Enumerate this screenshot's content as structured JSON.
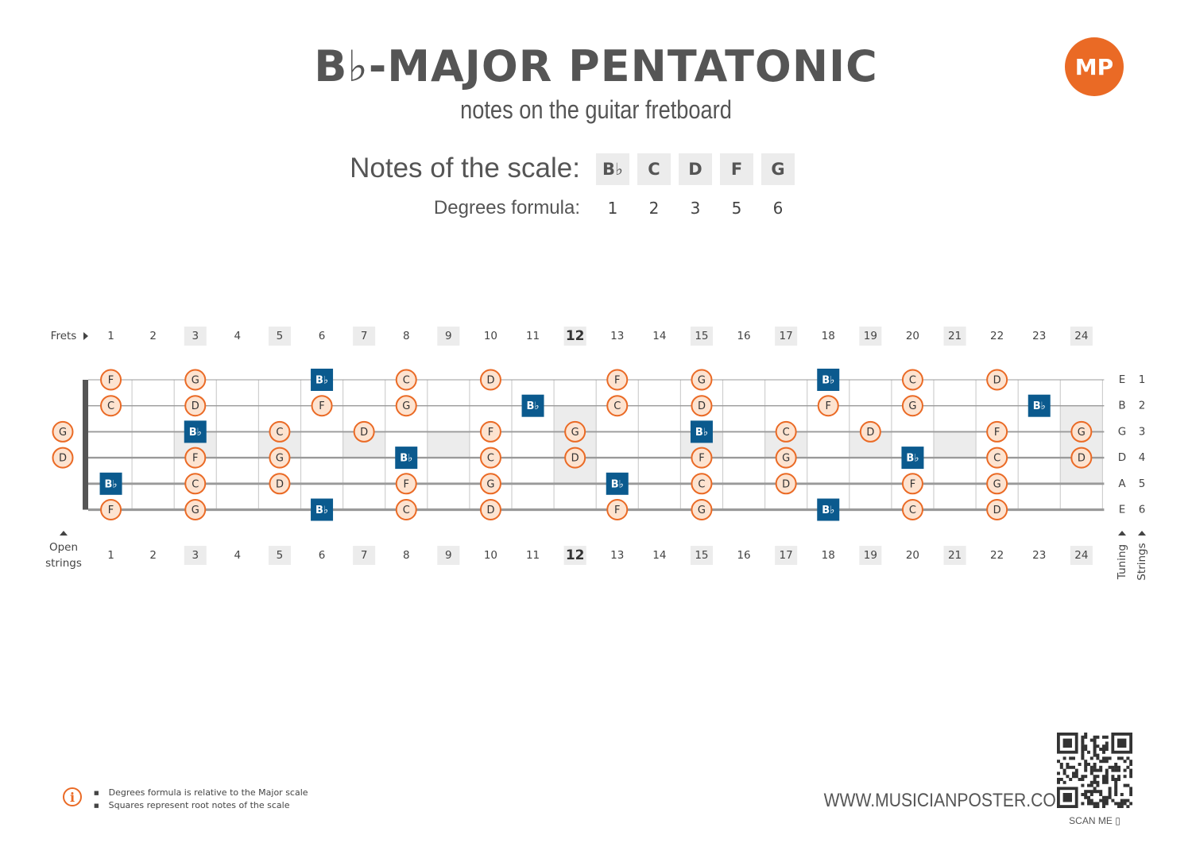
{
  "header": {
    "title": "B♭-MAJOR PENTATONIC",
    "subtitle": "notes on the guitar fretboard",
    "logo_text": "MP",
    "accent_color": "#ea6a25",
    "root_color": "#0b5a8e"
  },
  "scale": {
    "notes_label": "Notes of the scale:",
    "degrees_label": "Degrees formula:",
    "notes": [
      "B♭",
      "C",
      "D",
      "F",
      "G"
    ],
    "degrees": [
      "1",
      "2",
      "3",
      "5",
      "6"
    ]
  },
  "fretboard": {
    "frets_label": "Frets",
    "open_label_1": "Open",
    "open_label_2": "strings",
    "tuning_label": "Tuning",
    "strings_label": "Strings",
    "fret_numbers": [
      "1",
      "2",
      "3",
      "4",
      "5",
      "6",
      "7",
      "8",
      "9",
      "10",
      "11",
      "12",
      "13",
      "14",
      "15",
      "16",
      "17",
      "18",
      "19",
      "20",
      "21",
      "22",
      "23",
      "24"
    ],
    "inlay_frets": [
      3,
      5,
      7,
      9,
      12,
      15,
      17,
      19,
      21,
      24
    ],
    "bold_fret": 12,
    "tuning": [
      "E",
      "B",
      "G",
      "D",
      "A",
      "E"
    ],
    "string_numbers": [
      "1",
      "2",
      "3",
      "4",
      "5",
      "6"
    ],
    "notes": [
      {
        "s": 1,
        "f": 1,
        "n": "F"
      },
      {
        "s": 1,
        "f": 3,
        "n": "G"
      },
      {
        "s": 1,
        "f": 6,
        "n": "B♭",
        "root": true
      },
      {
        "s": 1,
        "f": 8,
        "n": "C"
      },
      {
        "s": 1,
        "f": 10,
        "n": "D"
      },
      {
        "s": 1,
        "f": 13,
        "n": "F"
      },
      {
        "s": 1,
        "f": 15,
        "n": "G"
      },
      {
        "s": 1,
        "f": 18,
        "n": "B♭",
        "root": true
      },
      {
        "s": 1,
        "f": 20,
        "n": "C"
      },
      {
        "s": 1,
        "f": 22,
        "n": "D"
      },
      {
        "s": 2,
        "f": 1,
        "n": "C"
      },
      {
        "s": 2,
        "f": 3,
        "n": "D"
      },
      {
        "s": 2,
        "f": 6,
        "n": "F"
      },
      {
        "s": 2,
        "f": 8,
        "n": "G"
      },
      {
        "s": 2,
        "f": 11,
        "n": "B♭",
        "root": true
      },
      {
        "s": 2,
        "f": 13,
        "n": "C"
      },
      {
        "s": 2,
        "f": 15,
        "n": "D"
      },
      {
        "s": 2,
        "f": 18,
        "n": "F"
      },
      {
        "s": 2,
        "f": 20,
        "n": "G"
      },
      {
        "s": 2,
        "f": 23,
        "n": "B♭",
        "root": true
      },
      {
        "s": 3,
        "f": 0,
        "n": "G"
      },
      {
        "s": 3,
        "f": 3,
        "n": "B♭",
        "root": true
      },
      {
        "s": 3,
        "f": 5,
        "n": "C"
      },
      {
        "s": 3,
        "f": 7,
        "n": "D"
      },
      {
        "s": 3,
        "f": 10,
        "n": "F"
      },
      {
        "s": 3,
        "f": 12,
        "n": "G"
      },
      {
        "s": 3,
        "f": 15,
        "n": "B♭",
        "root": true
      },
      {
        "s": 3,
        "f": 17,
        "n": "C"
      },
      {
        "s": 3,
        "f": 19,
        "n": "D"
      },
      {
        "s": 3,
        "f": 22,
        "n": "F"
      },
      {
        "s": 3,
        "f": 24,
        "n": "G"
      },
      {
        "s": 4,
        "f": 0,
        "n": "D"
      },
      {
        "s": 4,
        "f": 3,
        "n": "F"
      },
      {
        "s": 4,
        "f": 5,
        "n": "G"
      },
      {
        "s": 4,
        "f": 8,
        "n": "B♭",
        "root": true
      },
      {
        "s": 4,
        "f": 10,
        "n": "C"
      },
      {
        "s": 4,
        "f": 12,
        "n": "D"
      },
      {
        "s": 4,
        "f": 15,
        "n": "F"
      },
      {
        "s": 4,
        "f": 17,
        "n": "G"
      },
      {
        "s": 4,
        "f": 20,
        "n": "B♭",
        "root": true
      },
      {
        "s": 4,
        "f": 22,
        "n": "C"
      },
      {
        "s": 4,
        "f": 24,
        "n": "D"
      },
      {
        "s": 5,
        "f": 1,
        "n": "B♭",
        "root": true
      },
      {
        "s": 5,
        "f": 3,
        "n": "C"
      },
      {
        "s": 5,
        "f": 5,
        "n": "D"
      },
      {
        "s": 5,
        "f": 8,
        "n": "F"
      },
      {
        "s": 5,
        "f": 10,
        "n": "G"
      },
      {
        "s": 5,
        "f": 13,
        "n": "B♭",
        "root": true
      },
      {
        "s": 5,
        "f": 15,
        "n": "C"
      },
      {
        "s": 5,
        "f": 17,
        "n": "D"
      },
      {
        "s": 5,
        "f": 20,
        "n": "F"
      },
      {
        "s": 5,
        "f": 22,
        "n": "G"
      },
      {
        "s": 6,
        "f": 1,
        "n": "F"
      },
      {
        "s": 6,
        "f": 3,
        "n": "G"
      },
      {
        "s": 6,
        "f": 6,
        "n": "B♭",
        "root": true
      },
      {
        "s": 6,
        "f": 8,
        "n": "C"
      },
      {
        "s": 6,
        "f": 10,
        "n": "D"
      },
      {
        "s": 6,
        "f": 13,
        "n": "F"
      },
      {
        "s": 6,
        "f": 15,
        "n": "G"
      },
      {
        "s": 6,
        "f": 18,
        "n": "B♭",
        "root": true
      },
      {
        "s": 6,
        "f": 20,
        "n": "C"
      },
      {
        "s": 6,
        "f": 22,
        "n": "D"
      }
    ]
  },
  "footer": {
    "info_icon": "info-icon",
    "notes": [
      "Degrees formula is relative to the Major scale",
      "Squares represent root notes of the scale"
    ],
    "website": "WWW.MUSICIANPOSTER.COM",
    "scan_me": "SCAN ME"
  }
}
